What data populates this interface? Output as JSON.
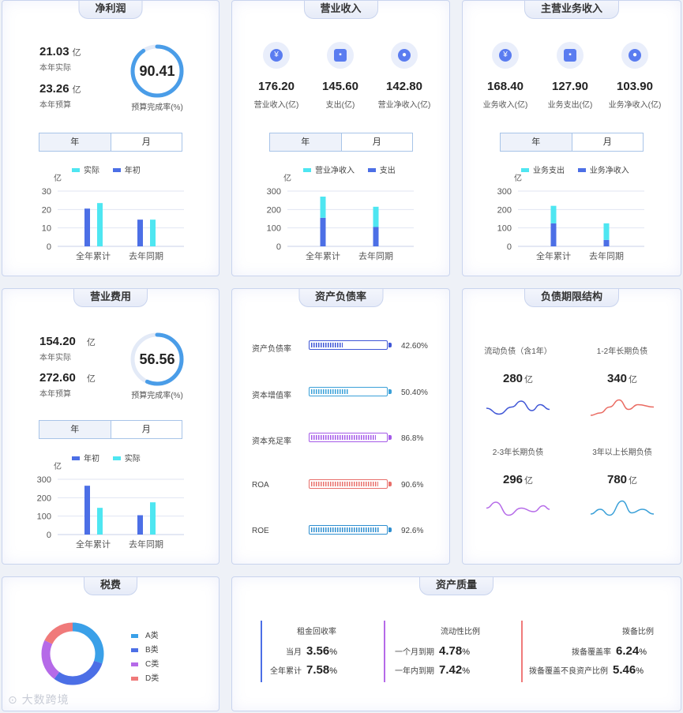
{
  "net_profit": {
    "title": "净利润",
    "actual": {
      "value": "21.03",
      "unit": "亿",
      "label": "本年实际"
    },
    "budget": {
      "value": "23.26",
      "unit": "亿",
      "label": "本年预算"
    },
    "rate": {
      "value": "90.41",
      "label": "预算完成率(%)",
      "fraction": 0.9041
    },
    "toggle": [
      "年",
      "月"
    ],
    "chart_data": {
      "type": "bar",
      "ylabel": "亿",
      "yticks": [
        "30",
        "20",
        "10",
        "0"
      ],
      "ylim": [
        0,
        30
      ],
      "categories": [
        "全年累计",
        "去年同期"
      ],
      "series": [
        {
          "name": "年初",
          "color": "#4c6fe6",
          "values": [
            20.5,
            14.5
          ]
        },
        {
          "name": "实际",
          "color": "#4ee6f1",
          "values": [
            23.5,
            14.5
          ]
        }
      ]
    }
  },
  "revenue": {
    "title": "营业收入",
    "items": [
      {
        "icon": "yen-icon",
        "value": "176.20",
        "label": "营业收入(亿)"
      },
      {
        "icon": "wallet-icon",
        "value": "145.60",
        "label": "支出(亿)"
      },
      {
        "icon": "piggy-bank-icon",
        "value": "142.80",
        "label": "营业净收入(亿)"
      }
    ],
    "toggle": [
      "年",
      "月"
    ],
    "chart_data": {
      "type": "bar",
      "stacked": true,
      "ylabel": "亿",
      "yticks": [
        "300",
        "200",
        "100",
        "0"
      ],
      "ylim": [
        0,
        300
      ],
      "categories": [
        "全年累计",
        "去年同期"
      ],
      "series": [
        {
          "name": "营业净收入",
          "color": "#4ee6f1",
          "values": [
            115,
            110
          ]
        },
        {
          "name": "支出",
          "color": "#4c6fe6",
          "values": [
            155,
            105
          ]
        }
      ]
    }
  },
  "main_business": {
    "title": "主营业务收入",
    "items": [
      {
        "icon": "yen-icon",
        "value": "168.40",
        "label": "业务收入(亿)"
      },
      {
        "icon": "wallet-icon",
        "value": "127.90",
        "label": "业务支出(亿)"
      },
      {
        "icon": "piggy-bank-icon",
        "value": "103.90",
        "label": "业务净收入(亿)"
      }
    ],
    "toggle": [
      "年",
      "月"
    ],
    "chart_data": {
      "type": "bar",
      "stacked": true,
      "ylabel": "亿",
      "yticks": [
        "300",
        "200",
        "100",
        "0"
      ],
      "ylim": [
        0,
        300
      ],
      "categories": [
        "全年累计",
        "去年同期"
      ],
      "series": [
        {
          "name": "业务支出",
          "color": "#4ee6f1",
          "values": [
            95,
            90
          ]
        },
        {
          "name": "业务净收入",
          "color": "#4c6fe6",
          "values": [
            125,
            35
          ]
        }
      ]
    }
  },
  "operating_cost": {
    "title": "营业费用",
    "actual": {
      "value": "154.20",
      "unit": "亿",
      "label": "本年实际"
    },
    "budget": {
      "value": "272.60",
      "unit": "亿",
      "label": "本年预算"
    },
    "rate": {
      "value": "56.56",
      "label": "预算完成率(%)",
      "fraction": 0.5656
    },
    "toggle": [
      "年",
      "月"
    ],
    "chart_data": {
      "type": "bar",
      "ylabel": "亿",
      "yticks": [
        "300",
        "200",
        "100",
        "0"
      ],
      "ylim": [
        0,
        300
      ],
      "categories": [
        "全年累计",
        "去年同期"
      ],
      "series": [
        {
          "name": "年初",
          "color": "#4c6fe6",
          "values": [
            265,
            105
          ]
        },
        {
          "name": "实际",
          "color": "#4ee6f1",
          "values": [
            145,
            175
          ]
        }
      ]
    }
  },
  "debt_ratio": {
    "title": "资产负债率",
    "rows": [
      {
        "name": "资产负债率",
        "pct": "42.60%",
        "fraction": 0.426,
        "color": "#3f56d6"
      },
      {
        "name": "资本增值率",
        "pct": "50.40%",
        "fraction": 0.504,
        "color": "#3aa0d8"
      },
      {
        "name": "资本充足率",
        "pct": "86.8%",
        "fraction": 0.868,
        "color": "#a55be8"
      },
      {
        "name": "ROA",
        "pct": "90.6%",
        "fraction": 0.906,
        "color": "#e8706b"
      },
      {
        "name": "ROE",
        "pct": "92.6%",
        "fraction": 0.926,
        "color": "#2f8fd0"
      }
    ]
  },
  "debt_term": {
    "title": "负债期限结构",
    "items": [
      {
        "label": "流动负债（含1年）",
        "value": "280",
        "unit": "亿",
        "color": "#3f56d6"
      },
      {
        "label": "1-2年长期负债",
        "value": "340",
        "unit": "亿",
        "color": "#ea6b62"
      },
      {
        "label": "2-3年长期负债",
        "value": "296",
        "unit": "亿",
        "color": "#b56ae8"
      },
      {
        "label": "3年以上长期负债",
        "value": "780",
        "unit": "亿",
        "color": "#3aa0d8"
      }
    ]
  },
  "tax": {
    "title": "税费",
    "chart_data": {
      "type": "pie",
      "labels": [
        "A类",
        "B类",
        "C类",
        "D类"
      ],
      "colors": [
        "#3aa0e8",
        "#4c6fe6",
        "#b56ae8",
        "#f07a7a"
      ],
      "values": [
        30,
        30,
        22,
        18
      ]
    }
  },
  "asset_quality": {
    "title": "资产质量",
    "groups": [
      {
        "title": "租金回收率",
        "color": "#4c6fe6",
        "rows": [
          {
            "label": "当月",
            "value": "3.56",
            "unit": "%"
          },
          {
            "label": "全年累计",
            "value": "7.58",
            "unit": "%"
          }
        ]
      },
      {
        "title": "流动性比例",
        "color": "#b56ae8",
        "rows": [
          {
            "label": "一个月到期",
            "value": "4.78",
            "unit": "%"
          },
          {
            "label": "一年内到期",
            "value": "7.42",
            "unit": "%"
          }
        ]
      },
      {
        "title": "拨备比例",
        "color": "#f07a7a",
        "rows": [
          {
            "label": "拨备覆盖率",
            "value": "6.24",
            "unit": "%"
          },
          {
            "label": "拨备覆盖不良资产比例",
            "value": "5.46",
            "unit": "%"
          }
        ]
      }
    ]
  },
  "watermark": "大数跨境"
}
